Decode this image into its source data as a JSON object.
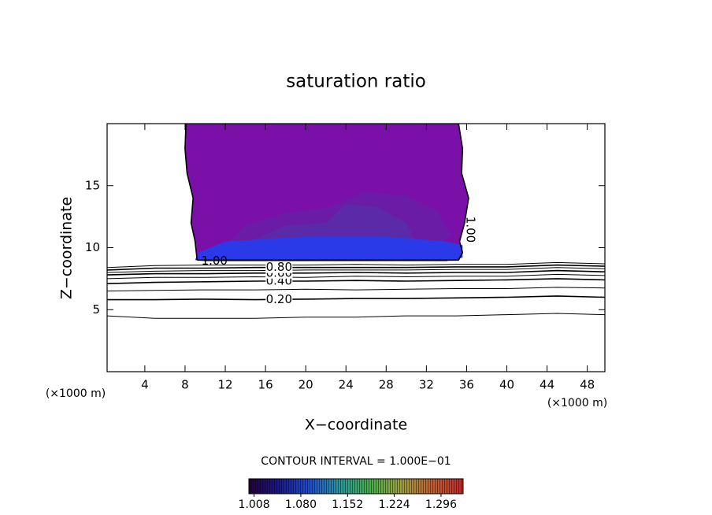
{
  "chart_data": {
    "type": "contour",
    "title": "saturation ratio",
    "xlabel": "X−coordinate",
    "ylabel": "Z−coordinate",
    "x_unit_left": "(×1000 m)",
    "x_unit_right": "(×1000 m)",
    "interval_label": "CONTOUR INTERVAL = 1.000E−01",
    "xlim": [
      0.25,
      49.75
    ],
    "ylim": [
      0,
      20
    ],
    "xticks": [
      4,
      8,
      12,
      16,
      20,
      24,
      28,
      32,
      36,
      40,
      44,
      48
    ],
    "yticks": [
      5,
      10,
      15
    ],
    "regions": [
      {
        "color": "#7a10a8",
        "x": [
          9.2,
          9.0,
          8.6,
          8.8,
          8.2,
          8.0,
          8.1,
          35.2,
          35.6,
          35.5,
          36.2,
          35.8,
          35.3,
          35.6,
          35.2
        ],
        "z": [
          9.0,
          10.5,
          12,
          14,
          16,
          18,
          20,
          20,
          18,
          16,
          14,
          12,
          10.5,
          9.6,
          9.0
        ]
      },
      {
        "color": "#6a1ca6",
        "x": [
          12,
          14,
          18,
          22,
          26,
          30,
          33,
          34.5,
          33,
          28,
          20,
          14
        ],
        "z": [
          10.2,
          11.8,
          12.8,
          13.2,
          14.5,
          14.2,
          13,
          11,
          10.2,
          10.2,
          10.2,
          10.2
        ]
      },
      {
        "color": "#5a2aa8",
        "x": [
          14,
          18,
          22,
          24,
          27,
          30,
          31,
          28,
          20
        ],
        "z": [
          10.3,
          11.8,
          12.0,
          13.5,
          13.3,
          12.0,
          10.3,
          10.3,
          10.3
        ]
      },
      {
        "color": "#2a3ae8",
        "x": [
          9.0,
          9.3,
          12,
          20,
          28,
          34,
          35.6,
          35.6,
          34,
          20,
          10
        ],
        "z": [
          9.0,
          9.6,
          10.5,
          10.9,
          10.9,
          10.5,
          10.2,
          9.2,
          8.9,
          8.9,
          8.9
        ]
      }
    ],
    "contours": [
      {
        "x": [
          0.25,
          5,
          10,
          15,
          20,
          25,
          30,
          35,
          40,
          45,
          49.75
        ],
        "z": [
          4.5,
          4.3,
          4.3,
          4.3,
          4.4,
          4.4,
          4.5,
          4.5,
          4.6,
          4.7,
          4.6
        ]
      },
      {
        "label": "0.20",
        "x": [
          0.25,
          5,
          10,
          15,
          20,
          25,
          30,
          35,
          40,
          45,
          49.75
        ],
        "z": [
          5.8,
          5.8,
          5.85,
          5.8,
          5.85,
          5.9,
          5.9,
          5.95,
          6.0,
          6.1,
          6.0
        ]
      },
      {
        "x": [
          0.25,
          5,
          10,
          15,
          20,
          25,
          30,
          35,
          40,
          45,
          49.75
        ],
        "z": [
          6.5,
          6.55,
          6.6,
          6.6,
          6.65,
          6.6,
          6.65,
          6.7,
          6.7,
          6.8,
          6.75
        ]
      },
      {
        "label": "0.40",
        "x": [
          0.25,
          5,
          10,
          15,
          20,
          25,
          30,
          35,
          40,
          45,
          49.75
        ],
        "z": [
          7.1,
          7.2,
          7.25,
          7.3,
          7.3,
          7.35,
          7.3,
          7.35,
          7.4,
          7.5,
          7.4
        ]
      },
      {
        "x": [
          0.25,
          5,
          10,
          15,
          20,
          25,
          30,
          35,
          40,
          45,
          49.75
        ],
        "z": [
          7.5,
          7.6,
          7.6,
          7.65,
          7.6,
          7.7,
          7.65,
          7.7,
          7.7,
          7.85,
          7.75
        ]
      },
      {
        "label": "0.60",
        "x": [
          0.25,
          5,
          10,
          15,
          20,
          25,
          30,
          35,
          40,
          45,
          49.75
        ],
        "z": [
          7.8,
          7.9,
          7.9,
          7.95,
          7.95,
          8.0,
          7.95,
          8.0,
          8.0,
          8.15,
          8.05
        ]
      },
      {
        "x": [
          0.25,
          5,
          10,
          15,
          20,
          25,
          30,
          35,
          40,
          45,
          49.75
        ],
        "z": [
          8.0,
          8.1,
          8.15,
          8.15,
          8.2,
          8.2,
          8.2,
          8.25,
          8.25,
          8.4,
          8.3
        ]
      },
      {
        "label": "0.80",
        "x": [
          0.25,
          5,
          10,
          15,
          20,
          25,
          30,
          35,
          40,
          45,
          49.75
        ],
        "z": [
          8.2,
          8.35,
          8.35,
          8.4,
          8.4,
          8.4,
          8.4,
          8.45,
          8.45,
          8.6,
          8.5
        ]
      },
      {
        "x": [
          0.25,
          5,
          10,
          15,
          20,
          25,
          30,
          35,
          40,
          45,
          49.75
        ],
        "z": [
          8.4,
          8.55,
          8.6,
          8.6,
          8.6,
          8.65,
          8.6,
          8.65,
          8.65,
          8.8,
          8.7
        ]
      },
      {
        "label": "1.00",
        "x": [
          9.2,
          9.0,
          8.6,
          8.8,
          8.2,
          8.0,
          8.1,
          null,
          35.2,
          35.6,
          35.5,
          36.2,
          35.8,
          35.3,
          35.6,
          35.2,
          9.2
        ],
        "z": [
          9.0,
          10.5,
          12,
          14,
          16,
          18,
          20,
          null,
          20,
          18,
          16,
          14,
          12,
          10.5,
          9.6,
          9.0,
          9.0
        ]
      }
    ],
    "colorbar": {
      "clim": [
        1.0,
        1.33
      ],
      "colors": [
        "#24003a",
        "#1a1a8a",
        "#1f4fd0",
        "#2a9a9a",
        "#4ab04a",
        "#a0a040",
        "#c06030",
        "#c02a2a"
      ],
      "ticks": [
        1.008,
        {
          "value": 1.08,
          "label": "1.080"
        },
        1.152,
        1.224,
        1.296
      ]
    }
  }
}
